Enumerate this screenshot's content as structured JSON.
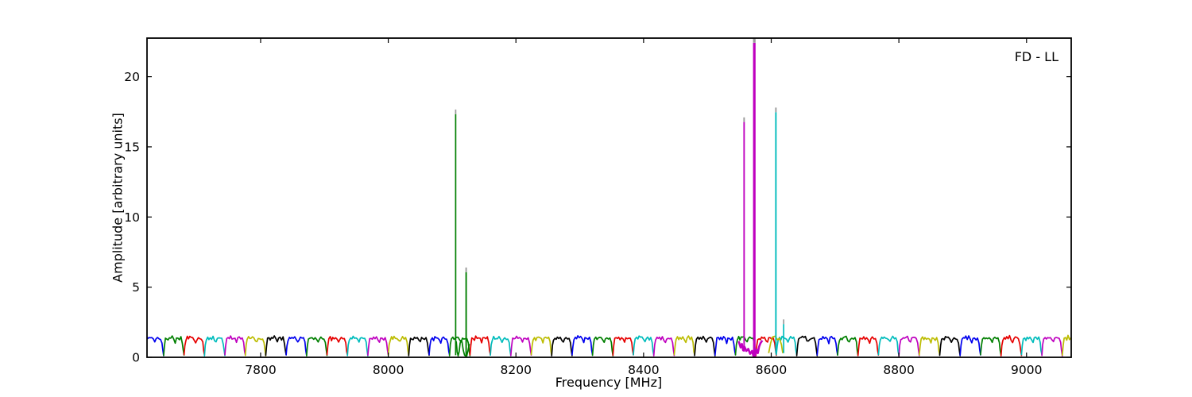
{
  "figure": {
    "background": "#ffffff"
  },
  "chart_data": {
    "type": "line",
    "title": "",
    "annotation": "FD - LL",
    "xlabel": "Frequency [MHz]",
    "ylabel": "Amplitude [arbitrary units]",
    "xlim": [
      7622,
      9070
    ],
    "ylim": [
      0,
      22.75
    ],
    "xticks": [
      7800,
      8000,
      8200,
      8400,
      8600,
      8800,
      9000
    ],
    "yticks": [
      0,
      5,
      10,
      15,
      20
    ],
    "grid": false,
    "legend_position": "none",
    "frame_color": "#000000",
    "spike_tip_color": "#999999",
    "color_map": {
      "b": "#0000ee",
      "g": "#007f00",
      "r": "#e60000",
      "c": "#00bcbc",
      "m": "#bf00bf",
      "y": "#bcbc00",
      "k": "#000000"
    },
    "baseline": {
      "grid_start_mhz": 7616,
      "segment_width_mhz": 32,
      "segment_count": 46,
      "typical_amplitude": 1.4,
      "segment_colors": [
        "b",
        "g",
        "r",
        "c",
        "m",
        "y",
        "k",
        "b",
        "g",
        "r",
        "c",
        "m",
        "y",
        "k",
        "b",
        "g",
        "r",
        "c",
        "m",
        "y",
        "k",
        "b",
        "g",
        "r",
        "c",
        "m",
        "y",
        "k",
        "b",
        "g",
        "r",
        "c",
        "k",
        "b",
        "g",
        "r",
        "c",
        "m",
        "y",
        "k",
        "b",
        "g",
        "r",
        "c",
        "m",
        "y"
      ],
      "profile": [
        [
          0,
          0.15
        ],
        [
          0.04,
          0.85
        ],
        [
          0.09,
          1.3
        ],
        [
          0.16,
          1.42
        ],
        [
          0.22,
          1.33
        ],
        [
          0.28,
          1.48
        ],
        [
          0.35,
          1.38
        ],
        [
          0.42,
          1.46
        ],
        [
          0.5,
          1.28
        ],
        [
          0.57,
          1.1
        ],
        [
          0.63,
          1.36
        ],
        [
          0.7,
          1.44
        ],
        [
          0.78,
          1.34
        ],
        [
          0.85,
          1.4
        ],
        [
          0.92,
          1.05
        ],
        [
          0.96,
          0.5
        ],
        [
          1,
          0.15
        ]
      ]
    },
    "spikes": [
      {
        "freq_mhz": 8105.6,
        "amplitude": 17.66,
        "base": 0.15,
        "color": "g",
        "width": 1.7
      },
      {
        "freq_mhz": 8122.0,
        "amplitude": 6.4,
        "base": 0.08,
        "color": "g",
        "width": 1.9
      },
      {
        "freq_mhz": 8557.5,
        "amplitude": 17.1,
        "base": 0.4,
        "color": "m",
        "width": 1.9
      },
      {
        "freq_mhz": 8573.5,
        "amplitude": 23.6,
        "base": 0.0,
        "color": "m",
        "width": 3.2
      },
      {
        "freq_mhz": 8607.3,
        "amplitude": 17.8,
        "base": 0.3,
        "color": "c",
        "width": 1.9
      },
      {
        "freq_mhz": 8619.5,
        "amplitude": 2.7,
        "base": 0.3,
        "color": "c",
        "width": 1.7
      }
    ],
    "overlays": [
      {
        "color": "g",
        "width": 1.7,
        "points": [
          [
            8106.5,
            1.15
          ],
          [
            8108,
            0.4
          ],
          [
            8109.5,
            0.1
          ],
          [
            8111,
            0.4
          ],
          [
            8112.5,
            1.0
          ],
          [
            8114,
            1.2
          ],
          [
            8115.5,
            1.1
          ],
          [
            8117.5,
            0.5
          ],
          [
            8119.5,
            0.15
          ],
          [
            8121,
            0.1
          ],
          [
            8123,
            0.1
          ],
          [
            8125,
            0.5
          ],
          [
            8127,
            0.95
          ]
        ]
      },
      {
        "color": "y",
        "width": 1.7,
        "points": [
          [
            8596,
            0.3
          ],
          [
            8599,
            1.0
          ],
          [
            8602,
            1.45
          ],
          [
            8606,
            1.5
          ],
          [
            8610,
            1.25
          ],
          [
            8613,
            1.35
          ],
          [
            8616,
            0.9
          ],
          [
            8618,
            0.3
          ]
        ]
      },
      {
        "color": "m",
        "width": 2.6,
        "points": [
          [
            8549,
            1.15
          ],
          [
            8552,
            0.7
          ],
          [
            8554,
            0.95
          ],
          [
            8556,
            0.5
          ],
          [
            8558,
            0.75
          ],
          [
            8561,
            0.45
          ],
          [
            8564,
            0.6
          ],
          [
            8567,
            0.25
          ],
          [
            8570,
            0.45
          ],
          [
            8572,
            0.12
          ],
          [
            8573.5,
            0.02
          ],
          [
            8575,
            0.15
          ],
          [
            8577,
            0.55
          ],
          [
            8579,
            0.3
          ],
          [
            8581,
            0.75
          ],
          [
            8583,
            1.0
          ],
          [
            8586,
            1.2
          ]
        ]
      }
    ]
  }
}
